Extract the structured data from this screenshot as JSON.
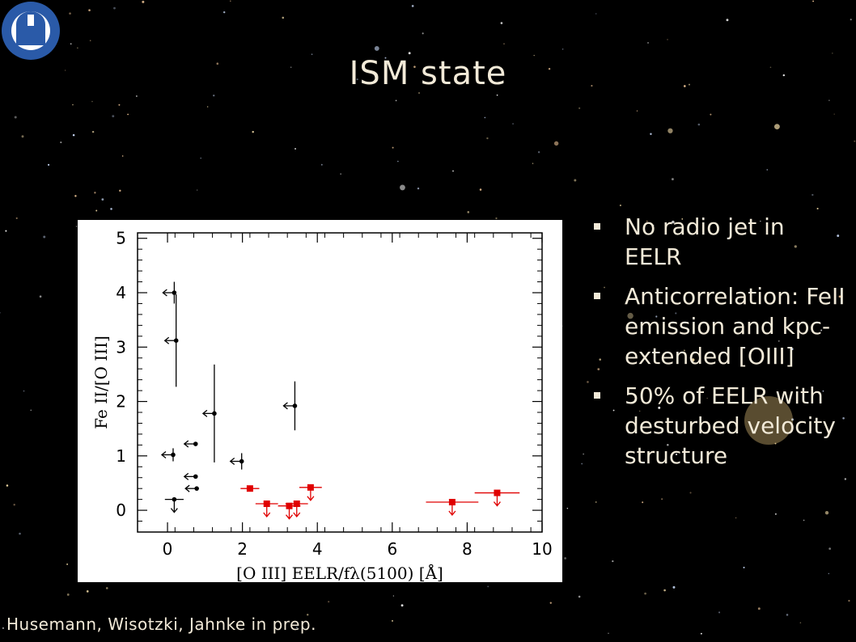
{
  "slide": {
    "title": "ISM state",
    "credit": "Husemann, Wisotzki, Jahnke in prep."
  },
  "bullets": [
    "No radio jet in EELR",
    "Anticorrelation: FeII emission and kpc-extended [OIII]",
    "50% of EELR with desturbed velocity structure"
  ],
  "colors": {
    "black_series": "#000000",
    "red_series": "#e00000",
    "text": "#f2ead8"
  },
  "chart_data": {
    "type": "scatter",
    "title": "",
    "xlabel": "[O III] EELR/fλ(5100) [Å]",
    "ylabel": "Fe II/[O III]",
    "xlim": [
      -0.8,
      10
    ],
    "ylim": [
      -0.4,
      5.1
    ],
    "xticks": [
      0,
      2,
      4,
      6,
      8,
      10
    ],
    "yticks": [
      0,
      1,
      2,
      3,
      4,
      5
    ],
    "grid": false,
    "series": [
      {
        "color": "#000000",
        "points": [
          {
            "x": 0.18,
            "y": 4.0,
            "yerr": [
              0.2,
              0.2
            ],
            "xlimit": "upper"
          },
          {
            "x": 0.23,
            "y": 3.12,
            "yerr": [
              0.85,
              0.85
            ],
            "xlimit": "upper"
          },
          {
            "x": 0.15,
            "y": 1.02,
            "yerr": [
              0.12,
              0.12
            ],
            "xlimit": "upper"
          },
          {
            "x": 0.18,
            "y": 0.2,
            "xerr": [
              0.25,
              0.25
            ],
            "ylimit": "upper"
          },
          {
            "x": 0.75,
            "y": 1.22,
            "xlimit": "upper"
          },
          {
            "x": 0.75,
            "y": 0.62,
            "xlimit": "upper"
          },
          {
            "x": 0.78,
            "y": 0.4,
            "xlimit": "upper"
          },
          {
            "x": 1.25,
            "y": 1.78,
            "yerr": [
              0.9,
              0.9
            ],
            "xlimit": "upper"
          },
          {
            "x": 1.98,
            "y": 0.9,
            "yerr": [
              0.15,
              0.15
            ],
            "xlimit": "upper"
          },
          {
            "x": 3.4,
            "y": 1.92,
            "yerr": [
              0.45,
              0.45
            ],
            "xlimit": "upper"
          }
        ]
      },
      {
        "color": "#e00000",
        "points": [
          {
            "x": 2.2,
            "y": 0.4,
            "xerr": [
              0.25,
              0.25
            ]
          },
          {
            "x": 2.65,
            "y": 0.12,
            "xerr": [
              0.3,
              0.3
            ],
            "ylimit": "upper"
          },
          {
            "x": 3.25,
            "y": 0.08,
            "xerr": [
              0.3,
              0.3
            ],
            "ylimit": "upper"
          },
          {
            "x": 3.45,
            "y": 0.12,
            "xerr": [
              0.3,
              0.3
            ],
            "ylimit": "upper"
          },
          {
            "x": 3.82,
            "y": 0.42,
            "xerr": [
              0.3,
              0.3
            ],
            "ylimit": "upper"
          },
          {
            "x": 7.6,
            "y": 0.15,
            "xerr": [
              0.7,
              0.7
            ],
            "ylimit": "upper"
          },
          {
            "x": 8.8,
            "y": 0.32,
            "xerr": [
              0.6,
              0.6
            ],
            "ylimit": "upper"
          }
        ]
      }
    ]
  }
}
